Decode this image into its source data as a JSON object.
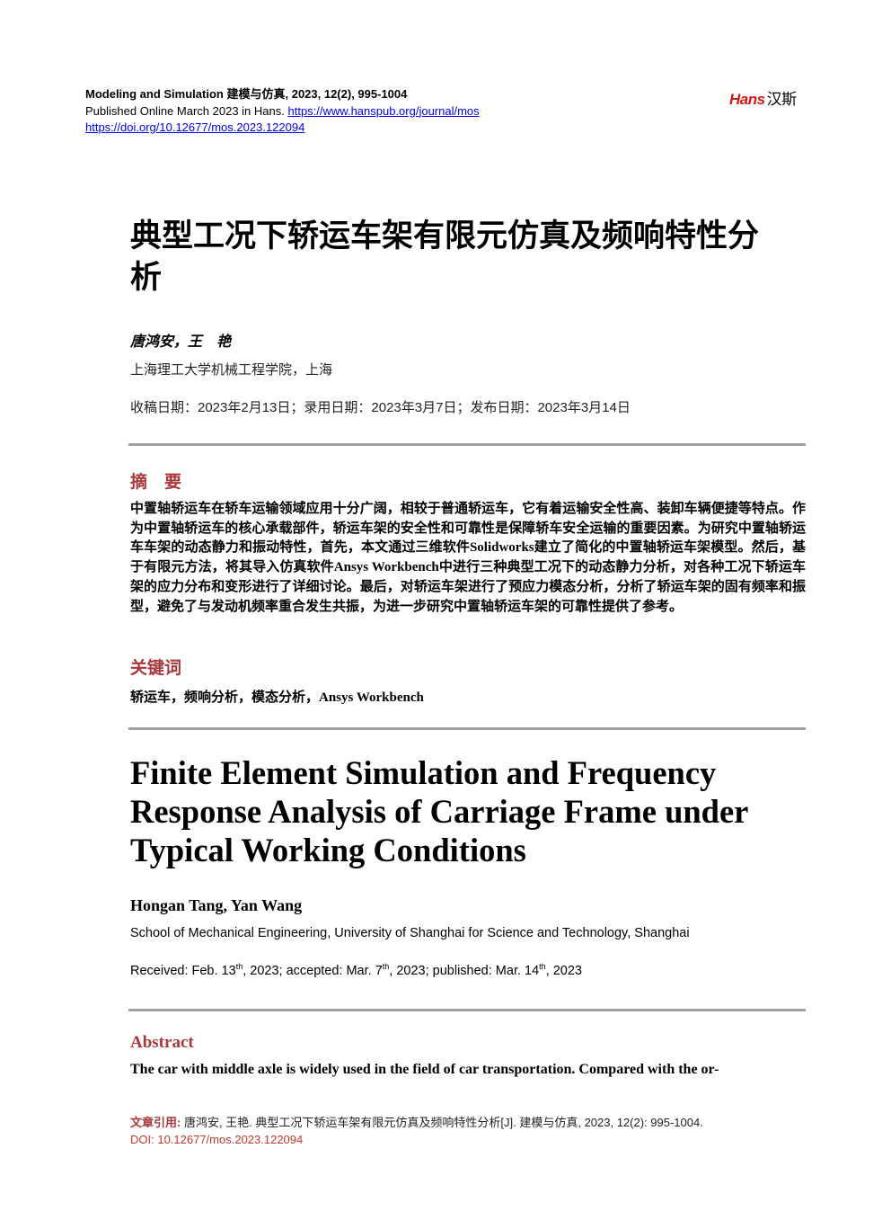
{
  "header": {
    "journal": "Modeling and Simulation",
    "journal_cn": "建模与仿真",
    "volume_info": ", 2023, 12(2), 995-1004",
    "published": "Published Online March 2023 in Hans.",
    "journal_url": "https://www.hanspub.org/journal/mos",
    "doi_url": "https://doi.org/10.12677/mos.2023.122094",
    "logo_text": "Hans",
    "logo_cn": "汉斯",
    "logo_color": "#d01818"
  },
  "cn": {
    "title": "典型工况下轿运车架有限元仿真及频响特性分析",
    "authors": "唐鸿安，王　艳",
    "affiliation": "上海理工大学机械工程学院，上海",
    "dates": "收稿日期：2023年2月13日；录用日期：2023年3月7日；发布日期：2023年3月14日",
    "abstract_heading": "摘　要",
    "abstract": "中置轴轿运车在轿车运输领域应用十分广阔，相较于普通轿运车，它有着运输安全性高、装卸车辆便捷等特点。作为中置轴轿运车的核心承载部件，轿运车架的安全性和可靠性是保障轿车安全运输的重要因素。为研究中置轴轿运车车架的动态静力和振动特性，首先，本文通过三维软件Solidworks建立了简化的中置轴轿运车架模型。然后，基于有限元方法，将其导入仿真软件Ansys Workbench中进行三种典型工况下的动态静力分析，对各种工况下轿运车架的应力分布和变形进行了详细讨论。最后，对轿运车架进行了预应力模态分析，分析了轿运车架的固有频率和振型，避免了与发动机频率重合发生共振，为进一步研究中置轴轿运车架的可靠性提供了参考。",
    "keywords_heading": "关键词",
    "keywords": "轿运车，频响分析，模态分析，Ansys Workbench"
  },
  "en": {
    "title": "Finite Element Simulation and Frequency Response Analysis of Carriage Frame under Typical Working Conditions",
    "authors": "Hongan Tang, Yan Wang",
    "affiliation": "School of Mechanical Engineering, University of Shanghai for Science and Technology, Shanghai",
    "received": "Received: Feb. 13",
    "accepted": ", 2023; accepted: Mar. 7",
    "published": ", 2023; published: Mar. 14",
    "year": ", 2023",
    "sup": "th",
    "abstract_heading": "Abstract",
    "abstract": "The car with middle axle is widely used in the field of car transportation. Compared with the or-"
  },
  "citation": {
    "label": "文章引用:",
    "text": " 唐鸿安, 王艳. 典型工况下轿运车架有限元仿真及频响特性分析[J]. 建模与仿真, 2023, 12(2): 995-1004.",
    "doi": "DOI: 10.12677/mos.2023.122094"
  },
  "colors": {
    "accent": "#a8383b",
    "rule": "#a0a0a0",
    "link": "#0000ee"
  }
}
